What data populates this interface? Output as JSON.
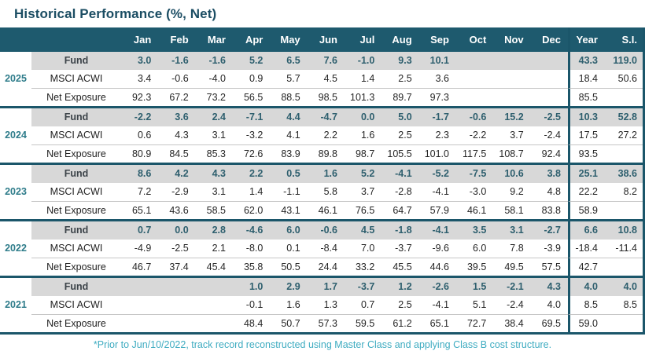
{
  "title": "Historical Performance (%, Net)",
  "footnote": "*Prior to Jun/10/2022, track record reconstructed using Master Class and applying Class B cost structure.",
  "colors": {
    "title": "#1B4D63",
    "header_bg": "#1E5A6E",
    "separator": "#1B566A",
    "fund_row_bg": "#D8D8D8",
    "fund_value": "#2E5F6E",
    "year_label": "#2E7C8A",
    "body_text": "#262626",
    "footnote": "#3FACC1"
  },
  "chart_data": {
    "type": "table",
    "title": "Historical Performance (%, Net)",
    "columns": [
      "Jan",
      "Feb",
      "Mar",
      "Apr",
      "May",
      "Jun",
      "Jul",
      "Aug",
      "Sep",
      "Oct",
      "Nov",
      "Dec",
      "Year",
      "S.I."
    ],
    "row_labels": [
      "Fund",
      "MSCI ACWI",
      "Net Exposure"
    ],
    "groups": [
      {
        "year": "2025",
        "rows": [
          [
            "3.0",
            "-1.6",
            "-1.6",
            "5.2",
            "6.5",
            "7.6",
            "-1.0",
            "9.3",
            "10.1",
            "",
            "",
            "",
            "43.3",
            "119.0"
          ],
          [
            "3.4",
            "-0.6",
            "-4.0",
            "0.9",
            "5.7",
            "4.5",
            "1.4",
            "2.5",
            "3.6",
            "",
            "",
            "",
            "18.4",
            "50.6"
          ],
          [
            "92.3",
            "67.2",
            "73.2",
            "56.5",
            "88.5",
            "98.5",
            "101.3",
            "89.7",
            "97.3",
            "",
            "",
            "",
            "85.5",
            ""
          ]
        ]
      },
      {
        "year": "2024",
        "rows": [
          [
            "-2.2",
            "3.6",
            "2.4",
            "-7.1",
            "4.4",
            "-4.7",
            "0.0",
            "5.0",
            "-1.7",
            "-0.6",
            "15.2",
            "-2.5",
            "10.3",
            "52.8"
          ],
          [
            "0.6",
            "4.3",
            "3.1",
            "-3.2",
            "4.1",
            "2.2",
            "1.6",
            "2.5",
            "2.3",
            "-2.2",
            "3.7",
            "-2.4",
            "17.5",
            "27.2"
          ],
          [
            "80.9",
            "84.5",
            "85.3",
            "72.6",
            "83.9",
            "89.8",
            "98.7",
            "105.5",
            "101.0",
            "117.5",
            "108.7",
            "92.4",
            "93.5",
            ""
          ]
        ]
      },
      {
        "year": "2023",
        "rows": [
          [
            "8.6",
            "4.2",
            "4.3",
            "2.2",
            "0.5",
            "1.6",
            "5.2",
            "-4.1",
            "-5.2",
            "-7.5",
            "10.6",
            "3.8",
            "25.1",
            "38.6"
          ],
          [
            "7.2",
            "-2.9",
            "3.1",
            "1.4",
            "-1.1",
            "5.8",
            "3.7",
            "-2.8",
            "-4.1",
            "-3.0",
            "9.2",
            "4.8",
            "22.2",
            "8.2"
          ],
          [
            "65.1",
            "43.6",
            "58.5",
            "62.0",
            "43.1",
            "46.1",
            "76.5",
            "64.7",
            "57.9",
            "46.1",
            "58.1",
            "83.8",
            "58.9",
            ""
          ]
        ]
      },
      {
        "year": "2022",
        "rows": [
          [
            "0.7",
            "0.0",
            "2.8",
            "-4.6",
            "6.0",
            "-0.6",
            "4.5",
            "-1.8",
            "-4.1",
            "3.5",
            "3.1",
            "-2.7",
            "6.6",
            "10.8"
          ],
          [
            "-4.9",
            "-2.5",
            "2.1",
            "-8.0",
            "0.1",
            "-8.4",
            "7.0",
            "-3.7",
            "-9.6",
            "6.0",
            "7.8",
            "-3.9",
            "-18.4",
            "-11.4"
          ],
          [
            "46.7",
            "37.4",
            "45.4",
            "35.8",
            "50.5",
            "24.4",
            "33.2",
            "45.5",
            "44.6",
            "39.5",
            "49.5",
            "57.5",
            "42.7",
            ""
          ]
        ]
      },
      {
        "year": "2021",
        "rows": [
          [
            "",
            "",
            "",
            "1.0",
            "2.9",
            "1.7",
            "-3.7",
            "1.2",
            "-2.6",
            "1.5",
            "-2.1",
            "4.3",
            "4.0",
            "4.0"
          ],
          [
            "",
            "",
            "",
            "-0.1",
            "1.6",
            "1.3",
            "0.7",
            "2.5",
            "-4.1",
            "5.1",
            "-2.4",
            "4.0",
            "8.5",
            "8.5"
          ],
          [
            "",
            "",
            "",
            "48.4",
            "50.7",
            "57.3",
            "59.5",
            "61.2",
            "65.1",
            "72.7",
            "38.4",
            "69.5",
            "59.0",
            ""
          ]
        ]
      }
    ]
  }
}
